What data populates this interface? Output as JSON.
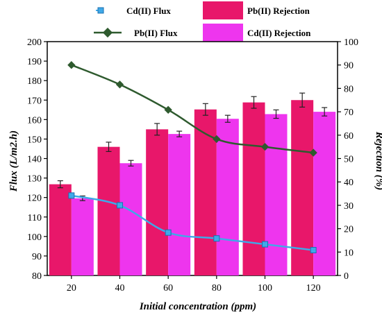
{
  "chart_data": {
    "type": "bar",
    "categories": [
      "20",
      "40",
      "60",
      "80",
      "100",
      "120"
    ],
    "xlabel": "Initial concentration (ppm)",
    "ylabel_left": "Flux (L/m2.h)",
    "ylabel_right": "Rejection (%)",
    "ylim_left": [
      80,
      200
    ],
    "ylim_right": [
      0,
      100
    ],
    "yticks_left": [
      "80",
      "90",
      "100",
      "110",
      "120",
      "130",
      "140",
      "150",
      "160",
      "170",
      "180",
      "190",
      "200"
    ],
    "yticks_right": [
      "0",
      "10",
      "20",
      "30",
      "40",
      "50",
      "60",
      "70",
      "80",
      "90",
      "100"
    ],
    "bars": [
      {
        "name": "Pb(II) Rejection",
        "color": "#e8176a",
        "values": [
          39,
          55,
          62.5,
          71,
          74,
          75
        ],
        "errors": [
          1.5,
          2,
          2.5,
          2.5,
          2.5,
          3
        ]
      },
      {
        "name": "Cd(II) Rejection",
        "color": "#ee35ee",
        "values": [
          33,
          48,
          60.5,
          67,
          69,
          70
        ],
        "errors": [
          1,
          1.2,
          1.2,
          1.5,
          1.8,
          1.8
        ]
      }
    ],
    "lines": [
      {
        "name": "Cd(II) Flux",
        "color": "#3fa9e8",
        "marker": "square",
        "dash": "dashed",
        "values": [
          121,
          116,
          102,
          99,
          96,
          93
        ]
      },
      {
        "name": "Pb(II) Flux",
        "color": "#2e5a2e",
        "marker": "diamond",
        "dash": "solid",
        "values": [
          188,
          178,
          165,
          150,
          146,
          143
        ]
      }
    ],
    "legend": {
      "cd_flux": "Cd(II) Flux",
      "pb_rejection": "Pb(II) Rejection",
      "pb_flux": "Pb(II) Flux",
      "cd_rejection": "Cd(II) Rejection"
    },
    "grid": false,
    "legend_placement": "top"
  }
}
